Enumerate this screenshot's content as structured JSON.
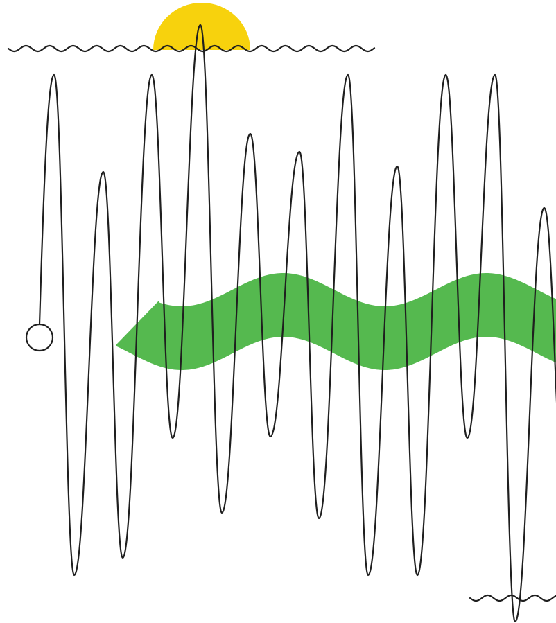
{
  "colors": {
    "background": "#ffffff",
    "line": "#1f1f1f",
    "sun": "#f7d20d",
    "ribbon": "#55b94f"
  },
  "elements": {
    "sun_icon": "sun-icon",
    "top_wave": "wave-line",
    "bottom_wave": "wave-line",
    "oscillation": "oscillating-line",
    "ribbon": "wavy-ribbon",
    "end_circle": "circle-endpoint"
  }
}
